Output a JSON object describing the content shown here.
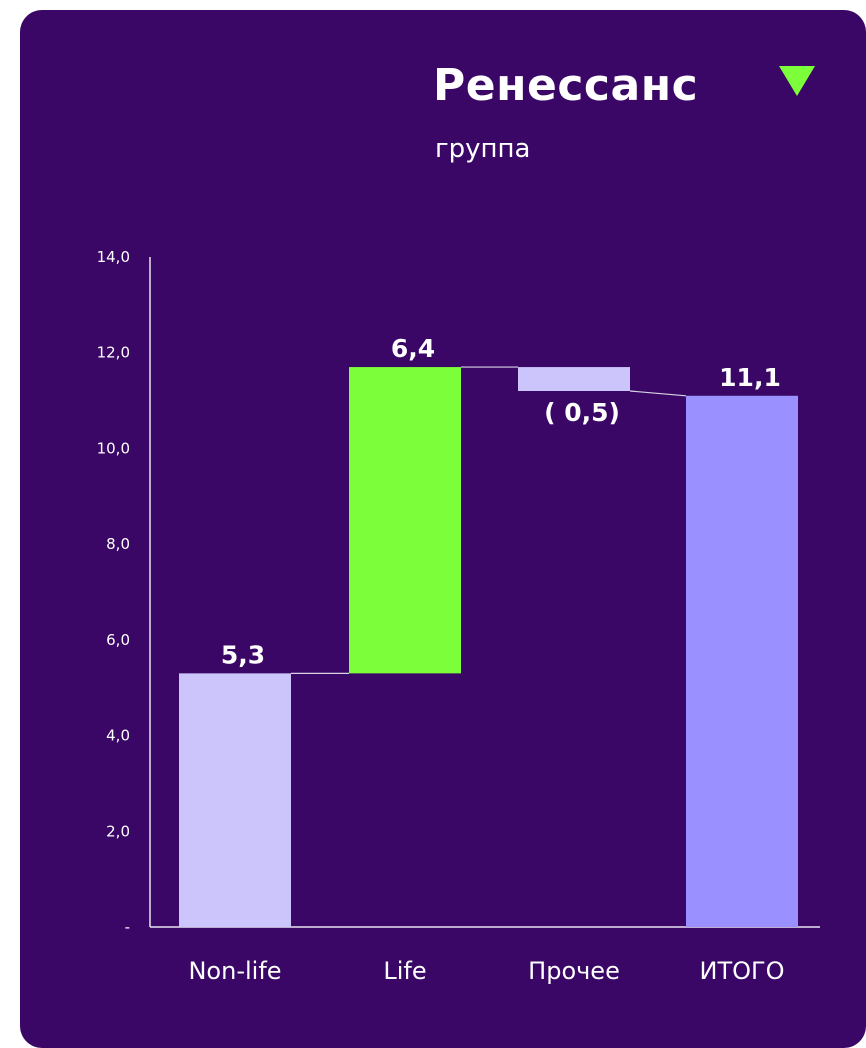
{
  "brand": {
    "name": "Ренессанс",
    "subtitle": "группа",
    "accent_color": "#7cff3a",
    "icon": "triangle-down-icon"
  },
  "chart_data": {
    "type": "bar",
    "subtype": "waterfall",
    "categories": [
      "Non-life",
      "Life",
      "Прочее",
      "ИТОГО"
    ],
    "values": [
      5.3,
      6.4,
      -0.5,
      11.1
    ],
    "data_labels": [
      "5,3",
      "6,4",
      "( 0,5)",
      "11,1"
    ],
    "ylim": [
      0,
      14
    ],
    "y_ticks": [
      {
        "value": 0,
        "label": "-"
      },
      {
        "value": 2,
        "label": "2,0"
      },
      {
        "value": 4,
        "label": "4,0"
      },
      {
        "value": 6,
        "label": "6,0"
      },
      {
        "value": 8,
        "label": "8,0"
      },
      {
        "value": 10,
        "label": "10,0"
      },
      {
        "value": 12,
        "label": "12,0"
      },
      {
        "value": 14,
        "label": "14,0"
      }
    ],
    "colors": [
      "#cbc5fb",
      "#7cff3a",
      "#cbc5fb",
      "#9b90ff"
    ],
    "grid": false,
    "legend": "none",
    "title": "",
    "xlabel": "",
    "ylabel": ""
  }
}
